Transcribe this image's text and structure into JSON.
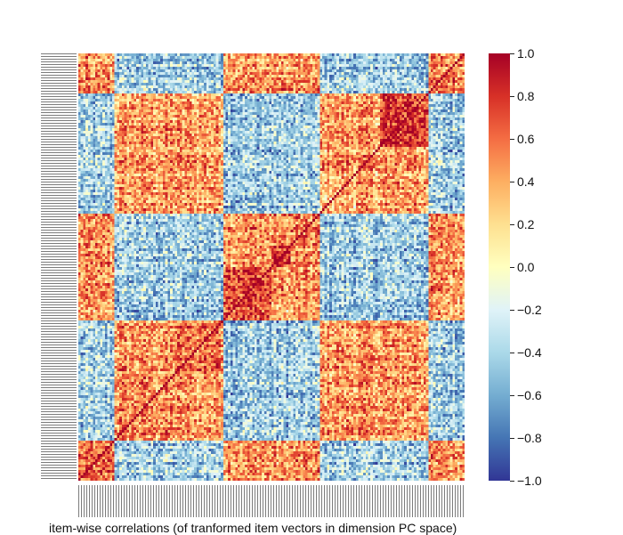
{
  "chart_data": {
    "type": "heatmap",
    "title": "",
    "xlabel": "item-wise correlations (of tranformed item vectors in dimension PC space)",
    "ylabel": "",
    "n_items": 160,
    "value_range": [
      -1.0,
      1.0
    ],
    "colormap": "RdYlBu_r",
    "colorbar": {
      "ticks": [
        1.0,
        0.8,
        0.6,
        0.4,
        0.2,
        0.0,
        -0.2,
        -0.4,
        -0.6,
        -0.8,
        -1.0
      ],
      "tick_labels": [
        "1.0",
        "0.8",
        "0.6",
        "0.4",
        "0.2",
        "0.0",
        "−0.2",
        "−0.4",
        "−0.6",
        "−0.8",
        "−1.0"
      ]
    },
    "diagonal_value": 1.0,
    "block_structure": [
      {
        "start": 0,
        "end": 15,
        "within": 0.55
      },
      {
        "start": 15,
        "end": 40,
        "within": 0.5
      },
      {
        "start": 40,
        "end": 60,
        "within": 0.6
      },
      {
        "start": 60,
        "end": 80,
        "within": 0.75
      },
      {
        "start": 80,
        "end": 88,
        "within": 0.85
      },
      {
        "start": 88,
        "end": 100,
        "within": 0.5
      },
      {
        "start": 100,
        "end": 115,
        "within": 0.35
      },
      {
        "start": 115,
        "end": 125,
        "within": 0.45
      },
      {
        "start": 125,
        "end": 145,
        "within": 0.8
      },
      {
        "start": 145,
        "end": 160,
        "within": 0.5
      }
    ],
    "colors": {
      "min": "#313695",
      "mid": "#ffffbf",
      "max": "#a50026"
    }
  }
}
